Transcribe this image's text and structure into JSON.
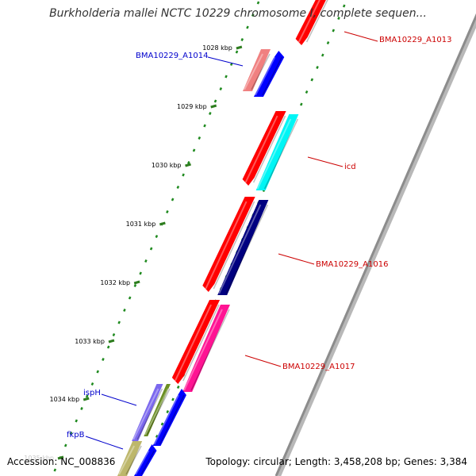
{
  "title": "Burkholderia mallei NCTC 10229 chromosome I, complete sequen...",
  "footer": {
    "accession": "Accession: NC_008836",
    "topology": "Topology: circular; Length: 3,458,208 bp; Genes: 3,384"
  },
  "colors": {
    "backbone": "#8c8c8c",
    "tick": "#2e7d1f",
    "dot": "#1f8a1f",
    "label_red": "#cc0000",
    "label_blue": "#0000cc"
  },
  "kbp_ticks": [
    "1028 kbp",
    "1029 kbp",
    "1030 kbp",
    "1031 kbp",
    "1032 kbp",
    "1033 kbp",
    "1034 kbp",
    "1035 kbp"
  ],
  "feature_labels": [
    {
      "text": "BMA10229_A1013",
      "color": "red"
    },
    {
      "text": "BMA10229_A1014",
      "color": "blue"
    },
    {
      "text": "icd",
      "color": "red"
    },
    {
      "text": "BMA10229_A1016",
      "color": "red"
    },
    {
      "text": "BMA10229_A1017",
      "color": "red"
    },
    {
      "text": "ispH",
      "color": "blue"
    },
    {
      "text": "fkpB",
      "color": "blue"
    }
  ],
  "features": [
    {
      "name": "BMA10229_A1013",
      "color": "#ff0000"
    },
    {
      "name": "BMA10229_A1014 (pink)",
      "color": "#f08080"
    },
    {
      "name": "BMA10229_A1014 (blue)",
      "color": "#0000ff"
    },
    {
      "name": "red gene",
      "color": "#ff0000"
    },
    {
      "name": "icd",
      "color": "#00f5f5"
    },
    {
      "name": "red gene 2",
      "color": "#ff0000"
    },
    {
      "name": "BMA10229_A1016",
      "color": "#000080"
    },
    {
      "name": "red gene 3",
      "color": "#ff0000"
    },
    {
      "name": "BMA10229_A1017",
      "color": "#ff1493"
    },
    {
      "name": "ispH",
      "color": "#7b68ee"
    },
    {
      "name": "ispH olive",
      "color": "#6b8e23"
    },
    {
      "name": "blue gene",
      "color": "#0000ff"
    },
    {
      "name": "fkpB",
      "color": "#bdb76b"
    },
    {
      "name": "blue gene 2",
      "color": "#0000ff"
    }
  ]
}
